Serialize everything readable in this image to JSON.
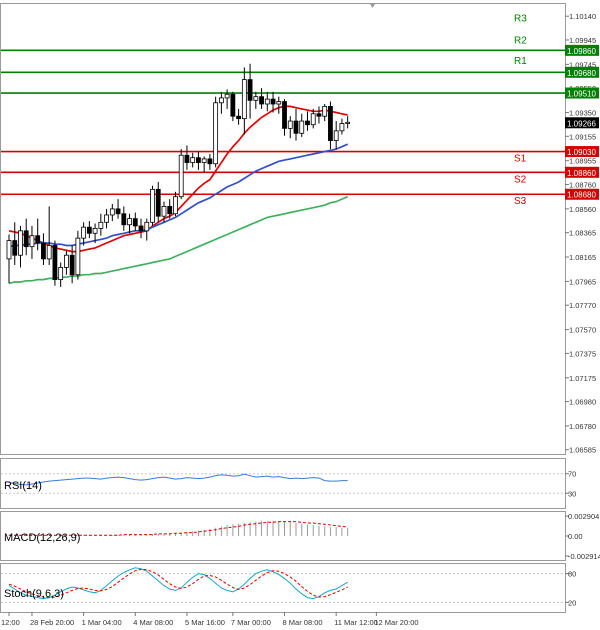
{
  "chart_data": {
    "type": "candlestick",
    "instrument_timeframe": "",
    "price_axis": {
      "ylim": [
        1.0655,
        1.1024
      ],
      "ticks": [
        1.1014,
        1.09945,
        1.09745,
        1.0955,
        1.0935,
        1.09155,
        1.08955,
        1.0876,
        1.0856,
        1.08365,
        1.08165,
        1.07965,
        1.0777,
        1.0757,
        1.07375,
        1.07175,
        1.0698,
        1.0678,
        1.06585
      ],
      "tick_labels": [
        "1.10140",
        "1.09945",
        "1.09745",
        "1.09550",
        "1.09350",
        "1.09155",
        "1.08955",
        "1.08760",
        "1.08560",
        "1.08365",
        "1.08165",
        "1.07965",
        "1.07770",
        "1.07570",
        "1.07375",
        "1.07175",
        "1.06980",
        "1.06780",
        "1.06585"
      ],
      "current_price": 1.09266,
      "current_price_label": "1.09266"
    },
    "x_axis": {
      "labels": [
        "12:00",
        "28 Feb 20:00",
        "1 Mar 04:00",
        "4 Mar 08:00",
        "5 Mar 16:00",
        "7 Mar 00:00",
        "8 Mar 08:00",
        "11 Mar 12:00",
        "12 Mar 20:00"
      ],
      "label_candle_index": [
        0,
        4,
        13,
        22,
        31,
        39,
        48,
        57,
        64
      ]
    },
    "levels": [
      {
        "name": "R3",
        "value": 1.0986,
        "label": "1.09860",
        "color": "#008000"
      },
      {
        "name": "R2",
        "value": 1.0968,
        "label": "1.09680",
        "color": "#008000"
      },
      {
        "name": "R1",
        "value": 1.0951,
        "label": "1.09510",
        "color": "#008000"
      },
      {
        "name": "S1",
        "value": 1.0903,
        "label": "1.09030",
        "color": "#d40000"
      },
      {
        "name": "S2",
        "value": 1.0886,
        "label": "1.08860",
        "color": "#d40000"
      },
      {
        "name": "S3",
        "value": 1.0868,
        "label": "1.08680",
        "color": "#d40000"
      }
    ],
    "candles": [
      [
        1.0815,
        1.0835,
        1.0795,
        1.083
      ],
      [
        1.083,
        1.0845,
        1.081,
        1.0818
      ],
      [
        1.0818,
        1.0842,
        1.0808,
        1.0838
      ],
      [
        1.0838,
        1.0848,
        1.0818,
        1.0825
      ],
      [
        1.0825,
        1.0842,
        1.0815,
        1.0834
      ],
      [
        1.0834,
        1.0848,
        1.0822,
        1.0828
      ],
      [
        1.0828,
        1.0836,
        1.081,
        1.0815
      ],
      [
        1.0815,
        1.0858,
        1.081,
        1.0826
      ],
      [
        1.0826,
        1.083,
        1.0793,
        1.0798
      ],
      [
        1.0798,
        1.0812,
        1.0792,
        1.0808
      ],
      [
        1.0808,
        1.0822,
        1.0802,
        1.0818
      ],
      [
        1.0818,
        1.0826,
        1.0795,
        1.0802
      ],
      [
        1.0802,
        1.0838,
        1.0798,
        1.0832
      ],
      [
        1.0832,
        1.0845,
        1.0826,
        1.0841
      ],
      [
        1.0841,
        1.0846,
        1.0832,
        1.0836
      ],
      [
        1.0836,
        1.0844,
        1.0828,
        1.084
      ],
      [
        1.084,
        1.0852,
        1.0834,
        1.0845
      ],
      [
        1.0845,
        1.0856,
        1.084,
        1.0851
      ],
      [
        1.0851,
        1.086,
        1.0846,
        1.0856
      ],
      [
        1.0856,
        1.0864,
        1.0848,
        1.0852
      ],
      [
        1.0852,
        1.0858,
        1.0838,
        1.0843
      ],
      [
        1.0843,
        1.0852,
        1.0836,
        1.0848
      ],
      [
        1.0848,
        1.0853,
        1.0838,
        1.0842
      ],
      [
        1.0842,
        1.0848,
        1.0832,
        1.0838
      ],
      [
        1.0838,
        1.0848,
        1.083,
        1.0845
      ],
      [
        1.0845,
        1.0875,
        1.0842,
        1.0872
      ],
      [
        1.0872,
        1.0878,
        1.0845,
        1.085
      ],
      [
        1.085,
        1.0862,
        1.0845,
        1.0858
      ],
      [
        1.0858,
        1.0864,
        1.0848,
        1.0852
      ],
      [
        1.0852,
        1.087,
        1.085,
        1.0866
      ],
      [
        1.0866,
        1.0905,
        1.0864,
        1.09
      ],
      [
        1.09,
        1.0908,
        1.0888,
        1.0894
      ],
      [
        1.0894,
        1.0902,
        1.089,
        1.0898
      ],
      [
        1.0898,
        1.0903,
        1.0888,
        1.0894
      ],
      [
        1.0894,
        1.0899,
        1.0886,
        1.0897
      ],
      [
        1.0897,
        1.0901,
        1.0888,
        1.0893
      ],
      [
        1.0893,
        1.0948,
        1.089,
        1.0943
      ],
      [
        1.0943,
        1.0952,
        1.0934,
        1.0947
      ],
      [
        1.0947,
        1.0954,
        1.0938,
        1.095
      ],
      [
        1.095,
        1.0952,
        1.0928,
        1.0932
      ],
      [
        1.0932,
        1.0938,
        1.0925,
        1.093
      ],
      [
        1.093,
        1.0972,
        1.0917,
        1.0962
      ],
      [
        1.0962,
        1.0975,
        1.093,
        1.0945
      ],
      [
        1.0945,
        1.0952,
        1.0938,
        1.0948
      ],
      [
        1.0948,
        1.0955,
        1.0938,
        1.0942
      ],
      [
        1.0942,
        1.0952,
        1.0936,
        1.0946
      ],
      [
        1.0946,
        1.0952,
        1.0935,
        1.0942
      ],
      [
        1.0942,
        1.0948,
        1.0934,
        1.0944
      ],
      [
        1.0944,
        1.0946,
        1.0916,
        1.0922
      ],
      [
        1.0922,
        1.0932,
        1.0914,
        1.0928
      ],
      [
        1.0928,
        1.0938,
        1.0912,
        1.0918
      ],
      [
        1.0918,
        1.0934,
        1.0915,
        1.0928
      ],
      [
        1.0928,
        1.0936,
        1.092,
        1.0925
      ],
      [
        1.0925,
        1.0938,
        1.0922,
        1.0934
      ],
      [
        1.0934,
        1.094,
        1.0926,
        1.0932
      ],
      [
        1.0932,
        1.0942,
        1.0928,
        1.094
      ],
      [
        1.094,
        1.0944,
        1.0905,
        1.0912
      ],
      [
        1.0912,
        1.0928,
        1.0905,
        1.092
      ],
      [
        1.092,
        1.093,
        1.0917,
        1.0926
      ],
      [
        1.0926,
        1.0932,
        1.0922,
        1.0927
      ]
    ],
    "moving_averages": [
      {
        "color": "#e00000",
        "values": [
          1.0838,
          1.0837,
          1.0836,
          1.0834,
          1.0832,
          1.083,
          1.0828,
          1.0826,
          1.0824,
          1.0823,
          1.0822,
          1.0821,
          1.0821,
          1.0822,
          1.0823,
          1.0824,
          1.0826,
          1.0828,
          1.083,
          1.0832,
          1.0834,
          1.0835,
          1.0836,
          1.0837,
          1.0838,
          1.0842,
          1.0845,
          1.0848,
          1.085,
          1.0853,
          1.0858,
          1.0863,
          1.0868,
          1.0873,
          1.0877,
          1.088,
          1.0887,
          1.0894,
          1.0901,
          1.0907,
          1.0912,
          1.0918,
          1.0923,
          1.0927,
          1.0931,
          1.0934,
          1.0937,
          1.0939,
          1.094,
          1.094,
          1.0939,
          1.0938,
          1.0937,
          1.0936,
          1.0936,
          1.0937,
          1.0936,
          1.0935,
          1.0934,
          1.0933
        ]
      },
      {
        "color": "#3050c8",
        "values": [
          1.0825,
          1.0826,
          1.0826,
          1.0827,
          1.0827,
          1.0828,
          1.0828,
          1.0828,
          1.0827,
          1.0827,
          1.0826,
          1.0826,
          1.0827,
          1.0828,
          1.0829,
          1.083,
          1.0831,
          1.0832,
          1.0834,
          1.0835,
          1.0836,
          1.0837,
          1.0838,
          1.0838,
          1.0839,
          1.0841,
          1.0843,
          1.0845,
          1.0847,
          1.0849,
          1.0852,
          1.0855,
          1.0858,
          1.0861,
          1.0863,
          1.0865,
          1.0868,
          1.0871,
          1.0874,
          1.0876,
          1.0878,
          1.0881,
          1.0884,
          1.0887,
          1.0889,
          1.0891,
          1.0893,
          1.0895,
          1.0896,
          1.0897,
          1.0898,
          1.0899,
          1.09,
          1.0901,
          1.0902,
          1.0903,
          1.0904,
          1.0905,
          1.0907,
          1.0909
        ]
      },
      {
        "color": "#40b060",
        "values": [
          1.0795,
          1.0796,
          1.0796,
          1.0797,
          1.0797,
          1.0798,
          1.0798,
          1.0799,
          1.0799,
          1.08,
          1.08,
          1.0801,
          1.0801,
          1.0802,
          1.0802,
          1.0803,
          1.0803,
          1.0804,
          1.0805,
          1.0806,
          1.0807,
          1.0808,
          1.0809,
          1.081,
          1.0811,
          1.0812,
          1.0813,
          1.0814,
          1.0815,
          1.0817,
          1.0819,
          1.0821,
          1.0823,
          1.0825,
          1.0827,
          1.0829,
          1.0831,
          1.0833,
          1.0835,
          1.0837,
          1.0839,
          1.0841,
          1.0843,
          1.0845,
          1.0847,
          1.0849,
          1.085,
          1.0851,
          1.0852,
          1.0853,
          1.0854,
          1.0855,
          1.0856,
          1.0857,
          1.0858,
          1.0859,
          1.0861,
          1.0862,
          1.0864,
          1.0866
        ]
      }
    ],
    "indicators": [
      {
        "name": "RSI(14)",
        "ylim": [
          0,
          100
        ],
        "tick_values": [
          70,
          30
        ],
        "tick_labels": [
          "70",
          "30"
        ],
        "values": [
          52,
          50,
          48,
          47,
          49,
          51,
          53,
          55,
          56,
          57,
          58,
          59,
          60,
          61,
          61,
          60,
          59,
          61,
          62,
          63,
          62,
          60,
          58,
          57,
          58,
          60,
          62,
          63,
          61,
          59,
          60,
          62,
          61,
          60,
          61,
          63,
          66,
          68,
          67,
          65,
          66,
          69,
          66,
          63,
          64,
          65,
          63,
          64,
          62,
          60,
          61,
          60,
          61,
          62,
          61,
          56,
          55,
          55,
          56,
          56
        ],
        "color": "#3a7bd5"
      },
      {
        "name": "MACD(12,26,9)",
        "ylim": [
          -0.0035,
          0.0035
        ],
        "tick_values": [
          0.002904,
          0.0,
          -0.002914
        ],
        "tick_labels": [
          "0.002904",
          "0.00",
          "-0.002914"
        ],
        "histogram": [
          0.0001,
          0.0001,
          0.0001,
          0.0001,
          0.0001,
          0.0001,
          0.0001,
          0.0001,
          0.0001,
          0.0001,
          0.0001,
          0.0001,
          0.0001,
          0.0001,
          0.0001,
          0.0001,
          0.0001,
          0.0001,
          0.0001,
          0.0002,
          0.0002,
          0.0002,
          0.0002,
          0.0002,
          0.0002,
          0.0003,
          0.0003,
          0.0003,
          0.0004,
          0.0004,
          0.0005,
          0.0006,
          0.0007,
          0.0008,
          0.0009,
          0.001,
          0.0012,
          0.0014,
          0.0016,
          0.0017,
          0.0018,
          0.0019,
          0.002,
          0.0021,
          0.0022,
          0.0022,
          0.0022,
          0.0022,
          0.0021,
          0.002,
          0.0019,
          0.0018,
          0.0017,
          0.0016,
          0.0015,
          0.0014,
          0.0013,
          0.0013,
          0.0012,
          0.0012
        ],
        "signal": [
          0.0001,
          0.0001,
          0.0001,
          0.0001,
          0.0001,
          0.0001,
          0.0001,
          0.0001,
          0.0001,
          0.0001,
          0.0001,
          0.0001,
          0.0001,
          0.0001,
          0.0001,
          0.0001,
          0.0001,
          0.0001,
          0.0001,
          0.0001,
          0.0002,
          0.0002,
          0.0002,
          0.0002,
          0.0002,
          0.0002,
          0.0003,
          0.0003,
          0.0003,
          0.0004,
          0.0004,
          0.0005,
          0.0005,
          0.0006,
          0.0007,
          0.0008,
          0.0009,
          0.0011,
          0.0012,
          0.0013,
          0.0014,
          0.0016,
          0.0017,
          0.0018,
          0.0019,
          0.002,
          0.002,
          0.0021,
          0.0021,
          0.0021,
          0.0021,
          0.002,
          0.0019,
          0.0019,
          0.0018,
          0.0017,
          0.0016,
          0.0015,
          0.0014,
          0.0013
        ],
        "color": "#e00000"
      },
      {
        "name": "Stoch(9,6,3)",
        "ylim": [
          0,
          100
        ],
        "tick_values": [
          80,
          20
        ],
        "tick_labels": [
          "80",
          "20"
        ],
        "main": [
          55,
          48,
          40,
          35,
          32,
          30,
          28,
          30,
          35,
          42,
          48,
          52,
          50,
          46,
          42,
          40,
          45,
          55,
          65,
          75,
          82,
          88,
          92,
          90,
          85,
          75,
          65,
          55,
          48,
          45,
          50,
          62,
          72,
          80,
          78,
          70,
          60,
          50,
          45,
          42,
          48,
          58,
          70,
          80,
          85,
          88,
          84,
          78,
          70,
          60,
          48,
          38,
          30,
          28,
          32,
          40,
          45,
          48,
          55,
          62
        ],
        "signal": [
          58,
          54,
          48,
          42,
          38,
          34,
          31,
          30,
          31,
          35,
          40,
          45,
          49,
          50,
          48,
          45,
          44,
          47,
          53,
          62,
          71,
          79,
          86,
          89,
          88,
          84,
          77,
          68,
          59,
          52,
          49,
          52,
          59,
          68,
          75,
          76,
          73,
          66,
          58,
          51,
          47,
          50,
          57,
          66,
          75,
          82,
          86,
          85,
          80,
          73,
          64,
          53,
          43,
          35,
          31,
          32,
          36,
          41,
          46,
          52
        ],
        "color_main": "#18a6c8",
        "color_signal": "#e00000"
      }
    ]
  }
}
